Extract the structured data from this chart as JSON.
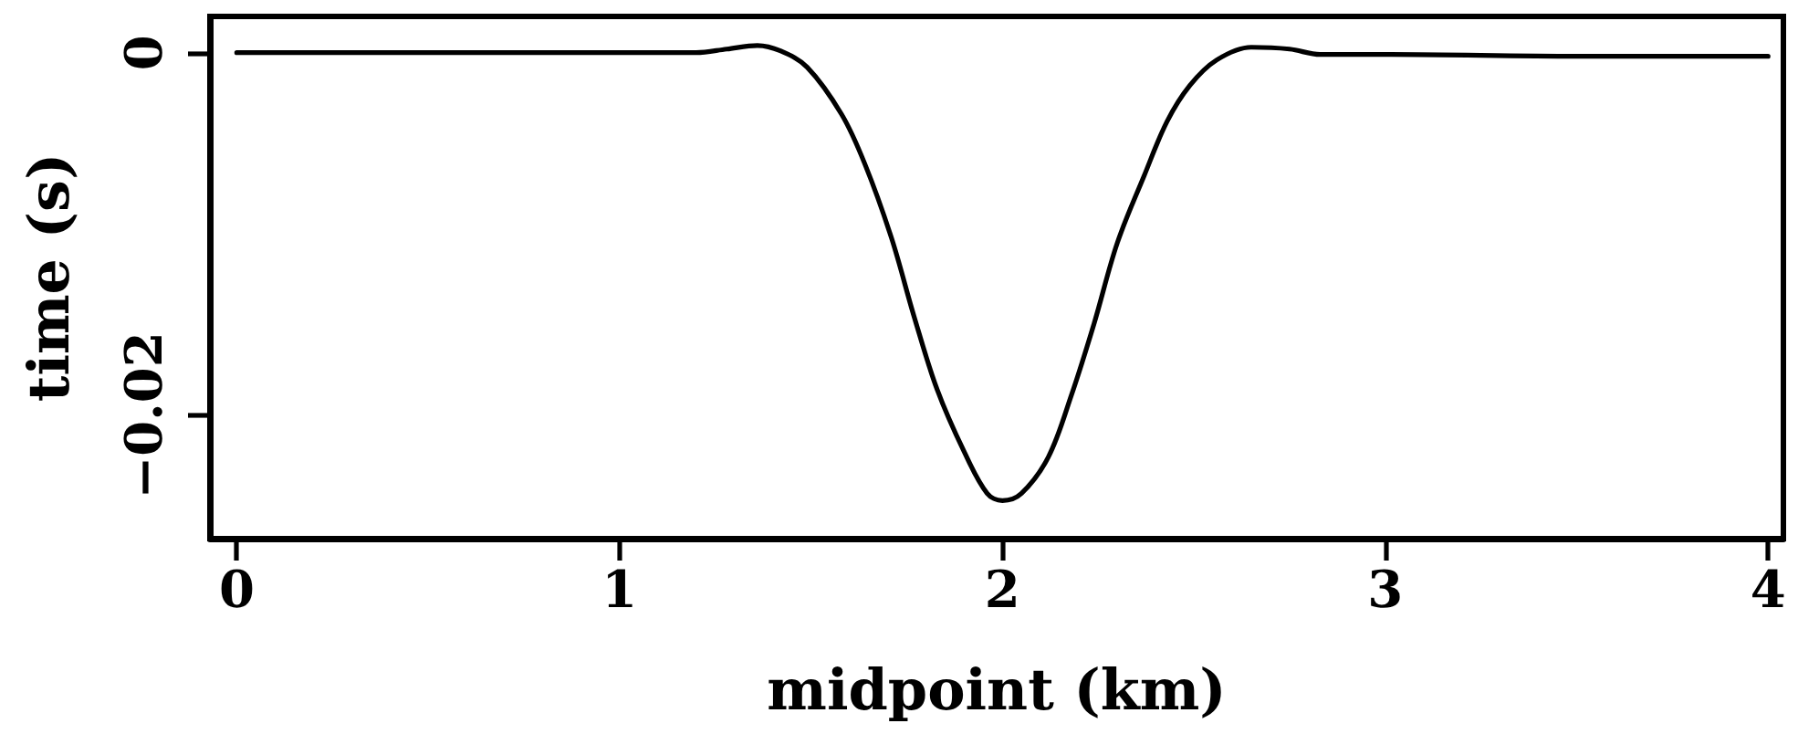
{
  "chart_data": {
    "type": "line",
    "xlabel": "midpoint (km)",
    "ylabel": "time (s)",
    "x": [
      0,
      0.5,
      1.0,
      1.2,
      1.28,
      1.36,
      1.42,
      1.49,
      1.58,
      1.64,
      1.71,
      1.77,
      1.83,
      1.9,
      1.96,
      2.0,
      2.05,
      2.12,
      2.18,
      2.24,
      2.3,
      2.37,
      2.43,
      2.49,
      2.56,
      2.65,
      2.75,
      2.83,
      3.0,
      3.5,
      4.0
    ],
    "series": [
      {
        "color": "#000000",
        "values": [
          0,
          0,
          0,
          0,
          0.0002,
          0.0004,
          0.0001,
          -0.0008,
          -0.0034,
          -0.0061,
          -0.0102,
          -0.0146,
          -0.0186,
          -0.022,
          -0.0243,
          -0.0247,
          -0.0243,
          -0.0223,
          -0.0189,
          -0.0149,
          -0.0105,
          -0.0068,
          -0.0038,
          -0.0018,
          -0.0004,
          0.0003,
          0.0002,
          -0.0001,
          -0.0001,
          -0.0002,
          -0.0002
        ]
      }
    ],
    "xlim": [
      -0.07,
      4.04
    ],
    "xticks": [
      0,
      1,
      2,
      3,
      4
    ],
    "ylim": [
      -0.0268,
      0.002
    ],
    "yticks": [
      {
        "value": -0.02,
        "label": "−0.02"
      },
      0
    ],
    "marker": "none",
    "line_style": "solid"
  }
}
